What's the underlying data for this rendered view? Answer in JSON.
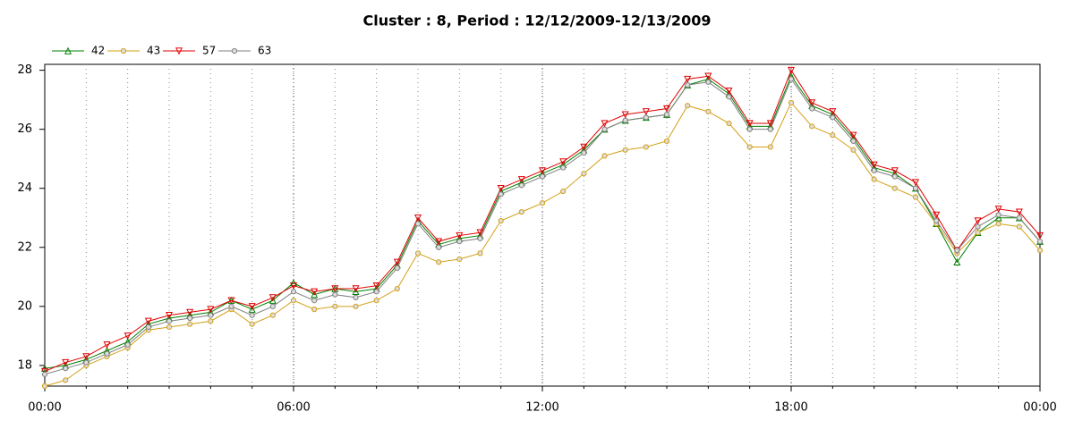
{
  "chart_data": {
    "type": "line",
    "title": "Cluster : 8, Period : 12/12/2009-12/13/2009",
    "x": [
      0,
      0.5,
      1,
      1.5,
      2,
      2.5,
      3,
      3.5,
      4,
      4.5,
      5,
      5.5,
      6,
      6.5,
      7,
      7.5,
      8,
      8.5,
      9,
      9.5,
      10,
      10.5,
      11,
      11.5,
      12,
      12.5,
      13,
      13.5,
      14,
      14.5,
      15,
      15.5,
      16,
      16.5,
      17,
      17.5,
      18,
      18.5,
      19,
      19.5,
      20,
      20.5,
      21,
      21.5,
      22,
      22.5,
      23,
      23.5,
      24
    ],
    "xlim": [
      0,
      24
    ],
    "xticks": [
      {
        "value": 0,
        "label": "00:00"
      },
      {
        "value": 6,
        "label": "06:00"
      },
      {
        "value": 12,
        "label": "12:00"
      },
      {
        "value": 18,
        "label": "18:00"
      },
      {
        "value": 24,
        "label": "00:00"
      }
    ],
    "ylim": [
      17.3,
      28.2
    ],
    "yticks": [
      18,
      20,
      22,
      24,
      26,
      28
    ],
    "grid": true,
    "legend": "top-left",
    "series": [
      {
        "name": "42",
        "color": "#008000",
        "marker": "triangle-up",
        "values": [
          17.9,
          18.0,
          18.2,
          18.5,
          18.8,
          19.4,
          19.6,
          19.7,
          19.8,
          20.2,
          19.9,
          20.2,
          20.8,
          20.4,
          20.6,
          20.5,
          20.6,
          21.4,
          22.9,
          22.1,
          22.3,
          22.4,
          23.9,
          24.2,
          24.5,
          24.8,
          25.3,
          26.0,
          26.3,
          26.4,
          26.5,
          27.5,
          27.7,
          27.2,
          26.1,
          26.1,
          27.8,
          26.8,
          26.5,
          25.7,
          24.7,
          24.5,
          24.0,
          22.8,
          21.5,
          22.5,
          23.0,
          23.0,
          22.2
        ]
      },
      {
        "name": "43",
        "color": "#d4a017",
        "marker": "circle",
        "values": [
          17.3,
          17.5,
          18.0,
          18.3,
          18.6,
          19.2,
          19.3,
          19.4,
          19.5,
          19.9,
          19.4,
          19.7,
          20.2,
          19.9,
          20.0,
          20.0,
          20.2,
          20.6,
          21.8,
          21.5,
          21.6,
          21.8,
          22.9,
          23.2,
          23.5,
          23.9,
          24.5,
          25.1,
          25.3,
          25.4,
          25.6,
          26.8,
          26.6,
          26.2,
          25.4,
          25.4,
          26.9,
          26.1,
          25.8,
          25.3,
          24.3,
          24.0,
          23.7,
          22.8,
          21.8,
          22.5,
          22.8,
          22.7,
          21.9
        ]
      },
      {
        "name": "57",
        "color": "#e00000",
        "marker": "triangle-down",
        "values": [
          17.8,
          18.1,
          18.3,
          18.7,
          19.0,
          19.5,
          19.7,
          19.8,
          19.9,
          20.2,
          20.0,
          20.3,
          20.7,
          20.5,
          20.6,
          20.6,
          20.7,
          21.5,
          23.0,
          22.2,
          22.4,
          22.5,
          24.0,
          24.3,
          24.6,
          24.9,
          25.4,
          26.2,
          26.5,
          26.6,
          26.7,
          27.7,
          27.8,
          27.3,
          26.2,
          26.2,
          28.0,
          26.9,
          26.6,
          25.8,
          24.8,
          24.6,
          24.2,
          23.1,
          21.9,
          22.9,
          23.3,
          23.2,
          22.4
        ]
      },
      {
        "name": "63",
        "color": "#808080",
        "marker": "circle",
        "values": [
          17.7,
          17.9,
          18.1,
          18.4,
          18.7,
          19.3,
          19.5,
          19.6,
          19.7,
          20.0,
          19.7,
          20.0,
          20.5,
          20.2,
          20.4,
          20.3,
          20.5,
          21.3,
          22.8,
          22.0,
          22.2,
          22.3,
          23.8,
          24.1,
          24.4,
          24.7,
          25.2,
          26.0,
          26.3,
          26.4,
          26.5,
          27.5,
          27.6,
          27.1,
          26.0,
          26.0,
          27.7,
          26.7,
          26.4,
          25.6,
          24.6,
          24.4,
          24.0,
          22.9,
          21.9,
          22.7,
          23.1,
          23.0,
          22.2
        ]
      }
    ]
  }
}
